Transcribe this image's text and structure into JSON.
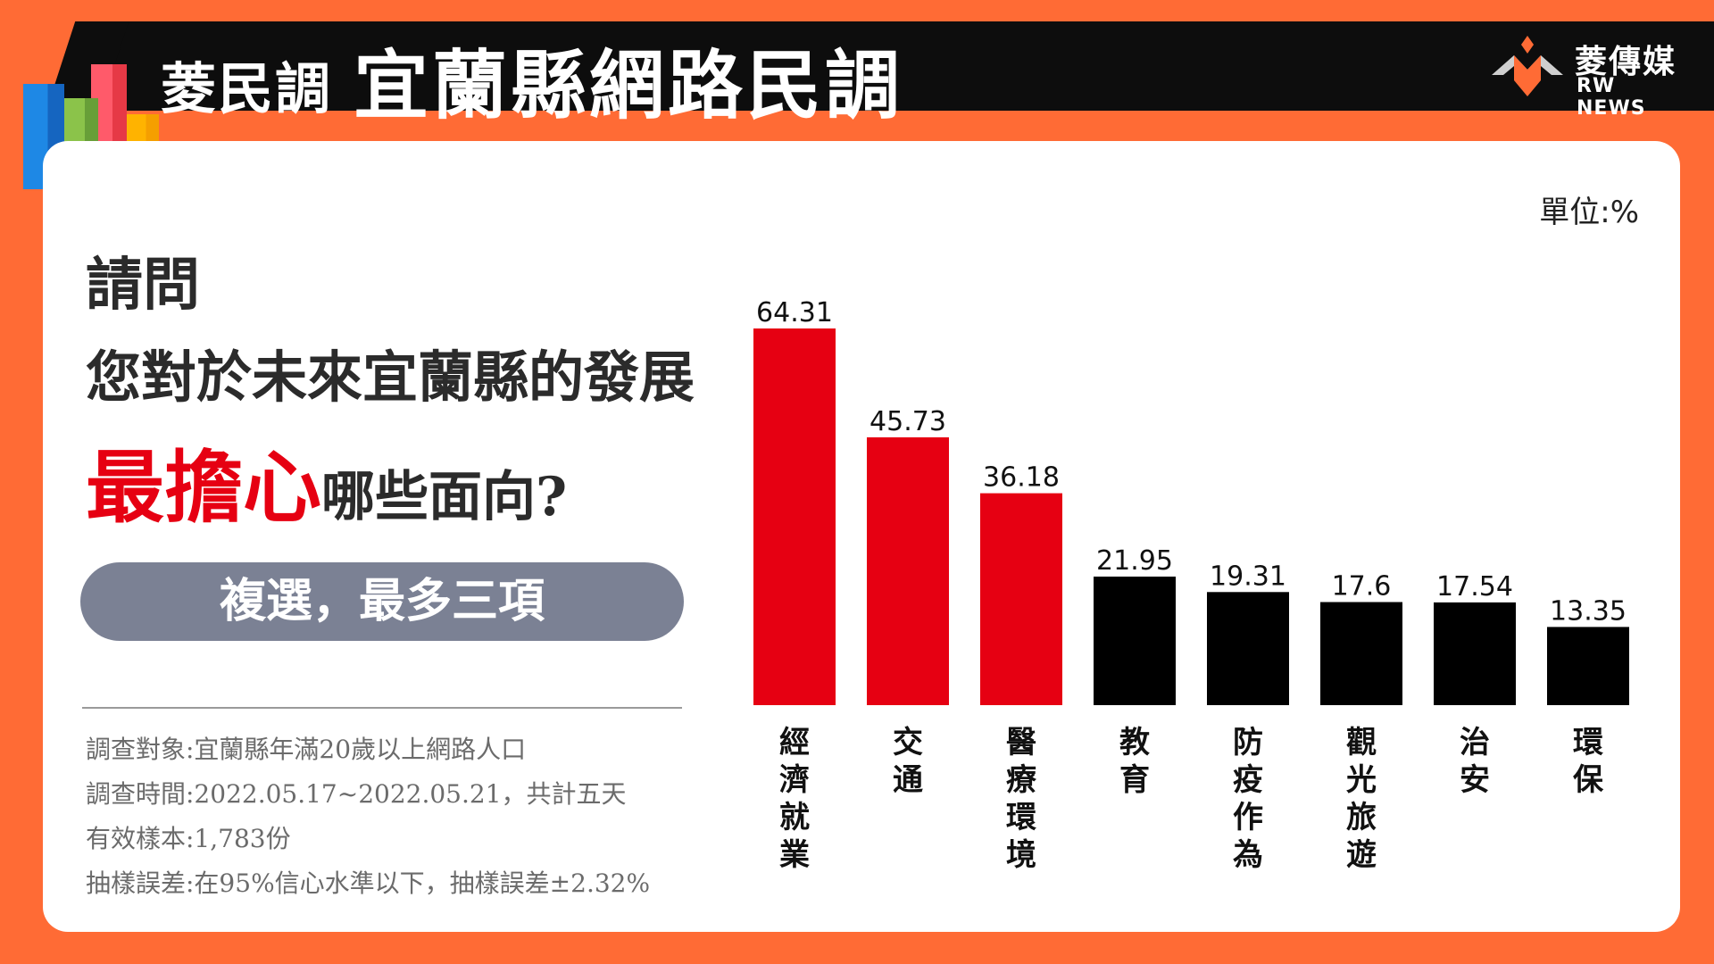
{
  "header": {
    "series_label": "菱民調",
    "title": "宜蘭縣網路民調",
    "brand_name": "菱傳媒",
    "brand_sub": "RW NEWS"
  },
  "colors": {
    "background": "#ff6b35",
    "header_bar": "#0d0d0d",
    "highlight_red": "#e60012",
    "bar_red": "#e60012",
    "bar_black": "#000000",
    "pill": "#7b8194"
  },
  "question": {
    "lead": "請問",
    "line2": "您對於未來宜蘭縣的發展",
    "highlight": "最擔心",
    "rest": "哪些面向?",
    "note": "複選，最多三項"
  },
  "unit": "單位:%",
  "survey": {
    "target": "調查對象:宜蘭縣年滿20歲以上網路人口",
    "period": "調查時間:2022.05.17~2022.05.21，共計五天",
    "sample": "有效樣本:1,783份",
    "error": "抽樣誤差:在95%信心水準以下，抽樣誤差±2.32%"
  },
  "chart_data": {
    "type": "bar",
    "title": "",
    "xlabel": "",
    "ylabel": "",
    "ylim": [
      0,
      64.31
    ],
    "grid": false,
    "categories": [
      "經濟就業",
      "交通",
      "醫療環境",
      "教育",
      "防疫作為",
      "觀光旅遊",
      "治安",
      "環保"
    ],
    "values": [
      64.31,
      45.73,
      36.18,
      21.95,
      19.31,
      17.6,
      17.54,
      13.35
    ],
    "value_labels": [
      "64.31",
      "45.73",
      "36.18",
      "21.95",
      "19.31",
      "17.6",
      "17.54",
      "13.35"
    ],
    "bar_colors": [
      "#e60012",
      "#e60012",
      "#e60012",
      "#000000",
      "#000000",
      "#000000",
      "#000000",
      "#000000"
    ]
  }
}
